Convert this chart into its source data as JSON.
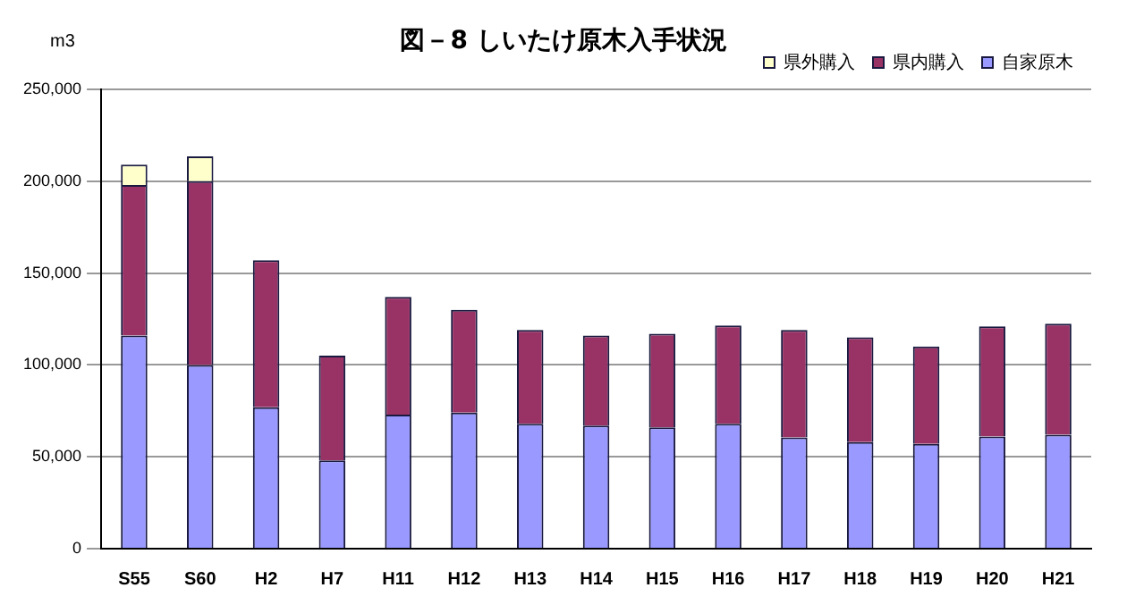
{
  "chart_data": {
    "type": "bar",
    "title": "図－8  しいたけ原木入手状況",
    "ylabel": "m3",
    "stacked": true,
    "legend": "top right",
    "grid": "y",
    "categories": [
      "S55",
      "S60",
      "H2",
      "H7",
      "H11",
      "H12",
      "H13",
      "H14",
      "H15",
      "H16",
      "H17",
      "H18",
      "H19",
      "H20",
      "H21"
    ],
    "ylim": [
      0,
      250000
    ],
    "yticks": [
      {
        "value": 0,
        "label": "0"
      },
      {
        "value": 50000,
        "label": "50,000"
      },
      {
        "value": 100000,
        "label": "100,000"
      },
      {
        "value": 150000,
        "label": "150,000"
      },
      {
        "value": 200000,
        "label": "200,000"
      },
      {
        "value": 250000,
        "label": "250,000"
      }
    ],
    "series": [
      {
        "name": "自家原木",
        "color": "#9999ff",
        "values": [
          116000,
          100000,
          77000,
          48000,
          73000,
          74000,
          68000,
          67000,
          66000,
          68000,
          60500,
          58000,
          57000,
          61000,
          62000
        ]
      },
      {
        "name": "県内購入",
        "color": "#993366",
        "values": [
          82000,
          100000,
          80000,
          57000,
          64000,
          56000,
          51000,
          49000,
          51000,
          53500,
          58500,
          57000,
          53000,
          60000,
          60500
        ]
      },
      {
        "name": "県外購入",
        "color": "#ffffcc",
        "values": [
          11000,
          13500,
          null,
          null,
          null,
          null,
          null,
          null,
          null,
          null,
          null,
          null,
          null,
          null,
          null
        ]
      }
    ]
  }
}
